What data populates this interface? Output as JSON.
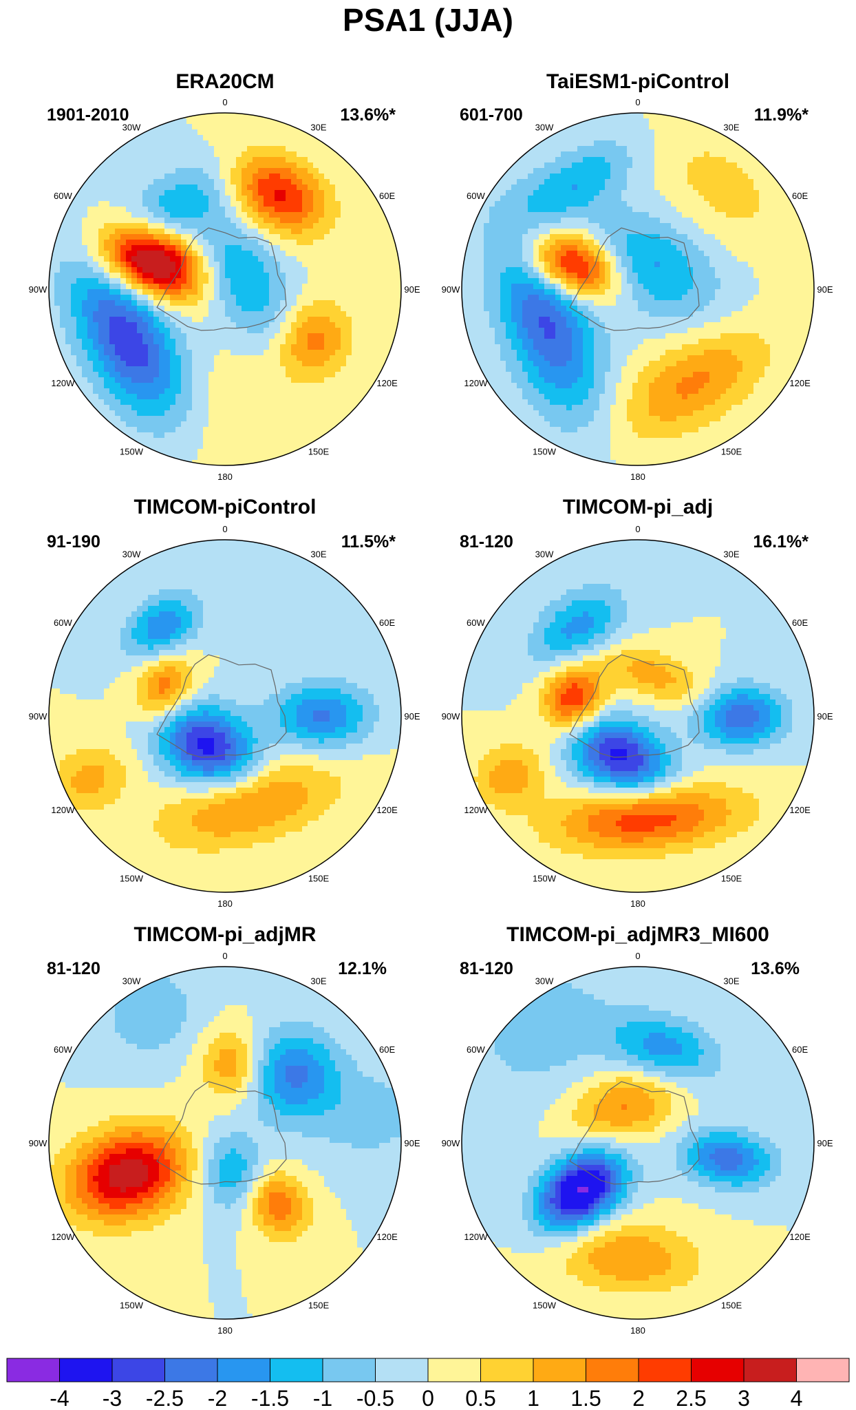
{
  "figure": {
    "title": "PSA1 (JJA)"
  },
  "panels": [
    {
      "title": "ERA20CM",
      "period": "1901-2010",
      "variance": "13.6%*",
      "blobs": [
        {
          "lon": -70,
          "r": 0.45,
          "amp": 4.2,
          "sx": 0.13,
          "sy": 0.21
        },
        {
          "lon": -118,
          "r": 0.62,
          "amp": -2.9,
          "sx": 0.36,
          "sy": 0.17
        },
        {
          "lon": 30,
          "r": 0.62,
          "amp": 2.6,
          "sx": 0.2,
          "sy": 0.14
        },
        {
          "lon": 60,
          "r": 0.12,
          "amp": -1.6,
          "sx": 0.26,
          "sy": 0.15
        },
        {
          "lon": -30,
          "r": 0.55,
          "amp": -1.3,
          "sx": 0.22,
          "sy": 0.13
        },
        {
          "lon": 120,
          "r": 0.58,
          "amp": 1.7,
          "sx": 0.16,
          "sy": 0.14
        },
        {
          "lon": -175,
          "r": 0.75,
          "amp": 0.4,
          "sx": 0.3,
          "sy": 0.3
        }
      ]
    },
    {
      "title": "TaiESM1-piControl",
      "period": "601-700",
      "variance": "11.9%*",
      "blobs": [
        {
          "lon": -70,
          "r": 0.4,
          "amp": 3.4,
          "sx": 0.12,
          "sy": 0.19
        },
        {
          "lon": -110,
          "r": 0.55,
          "amp": -2.6,
          "sx": 0.38,
          "sy": 0.17
        },
        {
          "lon": 30,
          "r": 0.15,
          "amp": -1.6,
          "sx": 0.28,
          "sy": 0.18
        },
        {
          "lon": -30,
          "r": 0.7,
          "amp": -1.4,
          "sx": 0.25,
          "sy": 0.12
        },
        {
          "lon": 150,
          "r": 0.62,
          "amp": 1.6,
          "sx": 0.32,
          "sy": 0.16
        },
        {
          "lon": 40,
          "r": 0.75,
          "amp": 0.7,
          "sx": 0.3,
          "sy": 0.18
        }
      ]
    },
    {
      "title": "TIMCOM-piControl",
      "period": "91-190",
      "variance": "11.5%*",
      "blobs": [
        {
          "lon": -150,
          "r": 0.2,
          "amp": -3.2,
          "sx": 0.2,
          "sy": 0.15
        },
        {
          "lon": -35,
          "r": 0.62,
          "amp": -1.9,
          "sx": 0.16,
          "sy": 0.11
        },
        {
          "lon": 90,
          "r": 0.55,
          "amp": -2.1,
          "sx": 0.13,
          "sy": 0.19
        },
        {
          "lon": -65,
          "r": 0.38,
          "amp": 1.9,
          "sx": 0.13,
          "sy": 0.11
        },
        {
          "lon": 165,
          "r": 0.52,
          "amp": 1.7,
          "sx": 0.35,
          "sy": 0.15
        },
        {
          "lon": -115,
          "r": 0.85,
          "amp": 1.2,
          "sx": 0.13,
          "sy": 0.16
        }
      ]
    },
    {
      "title": "TIMCOM-pi_adj",
      "period": "81-120",
      "variance": "16.1%*",
      "blobs": [
        {
          "lon": -155,
          "r": 0.25,
          "amp": -3.2,
          "sx": 0.21,
          "sy": 0.14
        },
        {
          "lon": -35,
          "r": 0.6,
          "amp": -1.8,
          "sx": 0.2,
          "sy": 0.13
        },
        {
          "lon": 90,
          "r": 0.58,
          "amp": -2.5,
          "sx": 0.12,
          "sy": 0.17
        },
        {
          "lon": -75,
          "r": 0.38,
          "amp": 2.6,
          "sx": 0.14,
          "sy": 0.12
        },
        {
          "lon": 175,
          "r": 0.58,
          "amp": 2.4,
          "sx": 0.36,
          "sy": 0.13
        },
        {
          "lon": -115,
          "r": 0.8,
          "amp": 1.4,
          "sx": 0.12,
          "sy": 0.14
        },
        {
          "lon": 20,
          "r": 0.25,
          "amp": 1.2,
          "sx": 0.25,
          "sy": 0.1
        }
      ]
    },
    {
      "title": "TIMCOM-pi_adjMR",
      "period": "81-120",
      "variance": "12.1%",
      "blobs": [
        {
          "lon": -108,
          "r": 0.58,
          "amp": 3.4,
          "sx": 0.17,
          "sy": 0.24
        },
        {
          "lon": 45,
          "r": 0.55,
          "amp": -2.1,
          "sx": 0.18,
          "sy": 0.18
        },
        {
          "lon": 165,
          "r": 0.18,
          "amp": -1.6,
          "sx": 0.13,
          "sy": 0.16
        },
        {
          "lon": 140,
          "r": 0.45,
          "amp": 2.0,
          "sx": 0.12,
          "sy": 0.14
        },
        {
          "lon": 5,
          "r": 0.45,
          "amp": 1.5,
          "sx": 0.12,
          "sy": 0.14
        },
        {
          "lon": -30,
          "r": 0.85,
          "amp": -0.9,
          "sx": 0.2,
          "sy": 0.18
        },
        {
          "lon": 80,
          "r": 0.85,
          "amp": -0.7,
          "sx": 0.2,
          "sy": 0.25
        }
      ]
    },
    {
      "title": "TIMCOM-pi_adjMR3_MI600",
      "period": "81-120",
      "variance": "13.6%",
      "blobs": [
        {
          "lon": -130,
          "r": 0.42,
          "amp": -4.1,
          "sx": 0.13,
          "sy": 0.19
        },
        {
          "lon": 15,
          "r": 0.55,
          "amp": -1.8,
          "sx": 0.22,
          "sy": 0.13
        },
        {
          "lon": 100,
          "r": 0.52,
          "amp": -2.3,
          "sx": 0.11,
          "sy": 0.18
        },
        {
          "lon": -20,
          "r": 0.22,
          "amp": 1.6,
          "sx": 0.22,
          "sy": 0.14
        },
        {
          "lon": -175,
          "r": 0.65,
          "amp": 1.5,
          "sx": 0.28,
          "sy": 0.14
        },
        {
          "lon": -40,
          "r": 0.85,
          "amp": -0.8,
          "sx": 0.3,
          "sy": 0.25
        }
      ]
    }
  ],
  "map_labels": {
    "lon_0": "0",
    "lon_30e": "30E",
    "lon_60e": "60E",
    "lon_90e": "90E",
    "lon_120e": "120E",
    "lon_150e": "150E",
    "lon_180": "180",
    "lon_150w": "150W",
    "lon_120w": "120W",
    "lon_90w": "90W",
    "lon_60w": "60W",
    "lon_30w": "30W"
  },
  "colorbar": {
    "levels": [
      "-4",
      "-3",
      "-2.5",
      "-2",
      "-1.5",
      "-1",
      "-0.5",
      "0",
      "0.5",
      "1",
      "1.5",
      "2",
      "2.5",
      "3",
      "4"
    ],
    "level_values": [
      -4,
      -3,
      -2.5,
      -2,
      -1.5,
      -1,
      -0.5,
      0,
      0.5,
      1,
      1.5,
      2,
      2.5,
      3,
      4
    ],
    "colors": [
      "#8a2be2",
      "#1e14f0",
      "#3c46e6",
      "#3c78e6",
      "#2896f0",
      "#14bef0",
      "#78c8f0",
      "#b4e0f5",
      "#fff598",
      "#ffd232",
      "#ffaa14",
      "#ff7d0a",
      "#ff3c00",
      "#e60000",
      "#c81e1e",
      "#ffb4b4"
    ]
  },
  "colors": {
    "coastline": "#666666",
    "outline": "#000000",
    "text": "#000000"
  }
}
